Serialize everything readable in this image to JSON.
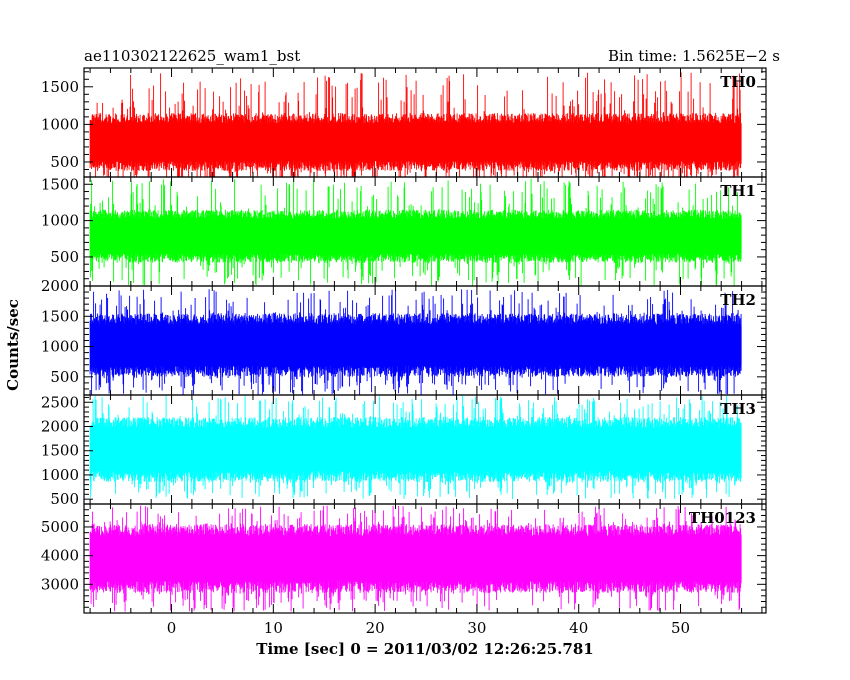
{
  "header": {
    "left_title": "ae110302122625_wam1_bst",
    "right_title": "Bin time: 1.5625E−2 s"
  },
  "chart_data": {
    "type": "line",
    "xlabel": "Time [sec] 0 = 2011/03/02 12:26:25.781",
    "ylabel": "Counts/sec",
    "xlim": [
      -8.6,
      58.4
    ],
    "x_ticks": [
      0,
      10,
      20,
      30,
      40,
      50
    ],
    "x_tick_labels": [
      "0",
      "10",
      "20",
      "30",
      "40",
      "50"
    ],
    "data_x_range": [
      -8,
      56
    ],
    "bin_time": 0.015625,
    "panels": [
      {
        "name": "TH0",
        "color": "#ff0000",
        "ylim": [
          300,
          1750
        ],
        "y_ticks": [
          500,
          1000,
          1500
        ],
        "y_tick_labels": [
          "500",
          "1000",
          "1500"
        ],
        "typical_range": [
          380,
          1150
        ],
        "extreme_range": [
          180,
          1700
        ]
      },
      {
        "name": "TH1",
        "color": "#00ff00",
        "ylim": [
          100,
          1600
        ],
        "y_ticks": [
          500,
          1000,
          1500
        ],
        "y_tick_labels": [
          "500",
          "1000",
          "1500"
        ],
        "typical_range": [
          420,
          1150
        ],
        "extreme_range": [
          100,
          1580
        ]
      },
      {
        "name": "TH2",
        "color": "#0000ff",
        "ylim": [
          200,
          2000
        ],
        "y_ticks": [
          500,
          1000,
          1500,
          2000
        ],
        "y_tick_labels": [
          "500",
          "1000",
          "1500",
          "2000"
        ],
        "typical_range": [
          500,
          1550
        ],
        "extreme_range": [
          200,
          1950
        ]
      },
      {
        "name": "TH3",
        "color": "#00ffff",
        "ylim": [
          400,
          2650
        ],
        "y_ticks": [
          500,
          1000,
          1500,
          2000,
          2500
        ],
        "y_tick_labels": [
          "500",
          "1000",
          "1500",
          "2000",
          "2500"
        ],
        "typical_range": [
          850,
          2200
        ],
        "extreme_range": [
          500,
          2650
        ]
      },
      {
        "name": "TH0123",
        "color": "#ff00ff",
        "ylim": [
          2000,
          5800
        ],
        "y_ticks": [
          3000,
          4000,
          5000
        ],
        "y_tick_labels": [
          "3000",
          "4000",
          "5000"
        ],
        "typical_range": [
          2700,
          5100
        ],
        "extreme_range": [
          2050,
          5750
        ]
      }
    ]
  }
}
